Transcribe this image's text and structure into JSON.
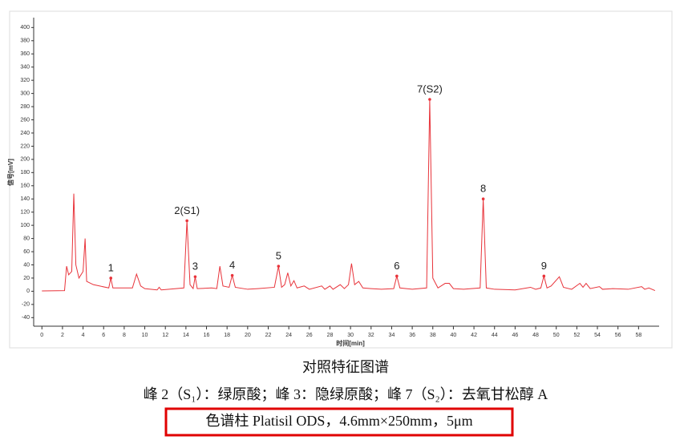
{
  "chart_data": {
    "type": "line",
    "xlabel": "时间[min]",
    "ylabel": "信号[mV]",
    "color": "#e8333a",
    "x": [
      0,
      2.2,
      2.4,
      2.6,
      2.9,
      3.1,
      3.3,
      3.6,
      4.0,
      4.2,
      4.35,
      5,
      6.5,
      6.7,
      6.9,
      8.8,
      9.2,
      9.6,
      10,
      11.2,
      11.4,
      11.6,
      13.8,
      14.1,
      14.4,
      14.7,
      14.9,
      15.1,
      16.5,
      17.0,
      17.3,
      17.6,
      18.2,
      18.5,
      18.8,
      20,
      21,
      22.6,
      23,
      23.3,
      23.6,
      23.9,
      24.2,
      24.5,
      24.8,
      25.5,
      26,
      27.2,
      27.5,
      28,
      28.3,
      29,
      29.4,
      29.8,
      30.1,
      30.4,
      30.8,
      31.2,
      32,
      33,
      34.2,
      34.5,
      34.8,
      36,
      37.4,
      37.7,
      38.0,
      38.5,
      39.2,
      39.6,
      40,
      41,
      42.6,
      42.9,
      43.2,
      44,
      46,
      47.5,
      48,
      48.5,
      48.8,
      49.1,
      49.5,
      50.3,
      50.7,
      51.5,
      52.3,
      52.6,
      52.9,
      53.3,
      54.2,
      54.5,
      55.5,
      57,
      58.3,
      58.6,
      59,
      59.6
    ],
    "values": [
      0.5,
      1,
      38,
      25,
      30,
      148,
      40,
      20,
      30,
      80,
      15,
      10,
      5,
      20,
      5,
      5,
      26,
      8,
      4,
      2,
      6,
      2,
      5,
      107,
      10,
      4,
      22,
      4,
      5,
      4,
      38,
      8,
      6,
      24,
      6,
      3,
      4,
      6,
      38,
      6,
      10,
      28,
      8,
      16,
      5,
      8,
      3,
      8,
      3,
      8,
      3,
      10,
      4,
      10,
      42,
      10,
      15,
      5,
      4,
      3,
      4,
      23,
      5,
      3,
      5,
      291,
      20,
      5,
      12,
      12,
      4,
      3,
      5,
      140,
      5,
      3,
      2,
      6,
      3,
      5,
      23,
      5,
      8,
      22,
      6,
      3,
      12,
      6,
      12,
      4,
      7,
      3,
      4,
      3,
      7,
      3,
      5,
      1
    ],
    "xlim": [
      -0.8,
      60
    ],
    "ylim": [
      -53,
      415
    ],
    "xticks": [
      0,
      2,
      4,
      6,
      8,
      10,
      12,
      14,
      16,
      18,
      20,
      22,
      24,
      26,
      28,
      30,
      32,
      34,
      36,
      38,
      40,
      42,
      44,
      46,
      48,
      50,
      52,
      54,
      56,
      58
    ],
    "yticks": [
      -40,
      -20,
      0,
      20,
      40,
      60,
      80,
      100,
      120,
      140,
      160,
      180,
      200,
      220,
      240,
      260,
      280,
      300,
      320,
      340,
      360,
      380,
      400
    ],
    "annotations": [
      {
        "text": "1",
        "x": 6.7,
        "y": 20
      },
      {
        "text": "2(S1)",
        "x": 14.1,
        "y": 107
      },
      {
        "text": "3",
        "x": 14.9,
        "y": 22
      },
      {
        "text": "4",
        "x": 18.5,
        "y": 24
      },
      {
        "text": "5",
        "x": 23,
        "y": 38
      },
      {
        "text": "6",
        "x": 34.5,
        "y": 23
      },
      {
        "text": "7(S2)",
        "x": 37.7,
        "y": 291
      },
      {
        "text": "8",
        "x": 42.9,
        "y": 140
      },
      {
        "text": "9",
        "x": 48.8,
        "y": 23
      }
    ]
  },
  "captions": [
    "对照特征图谱",
    "峰 2（S₁）：绿原酸；峰 3：隐绿原酸；峰 7（S₂）：去氧甘松醇 A",
    "色谱柱  Platisil ODS，4.6mm×250mm，5μm"
  ]
}
